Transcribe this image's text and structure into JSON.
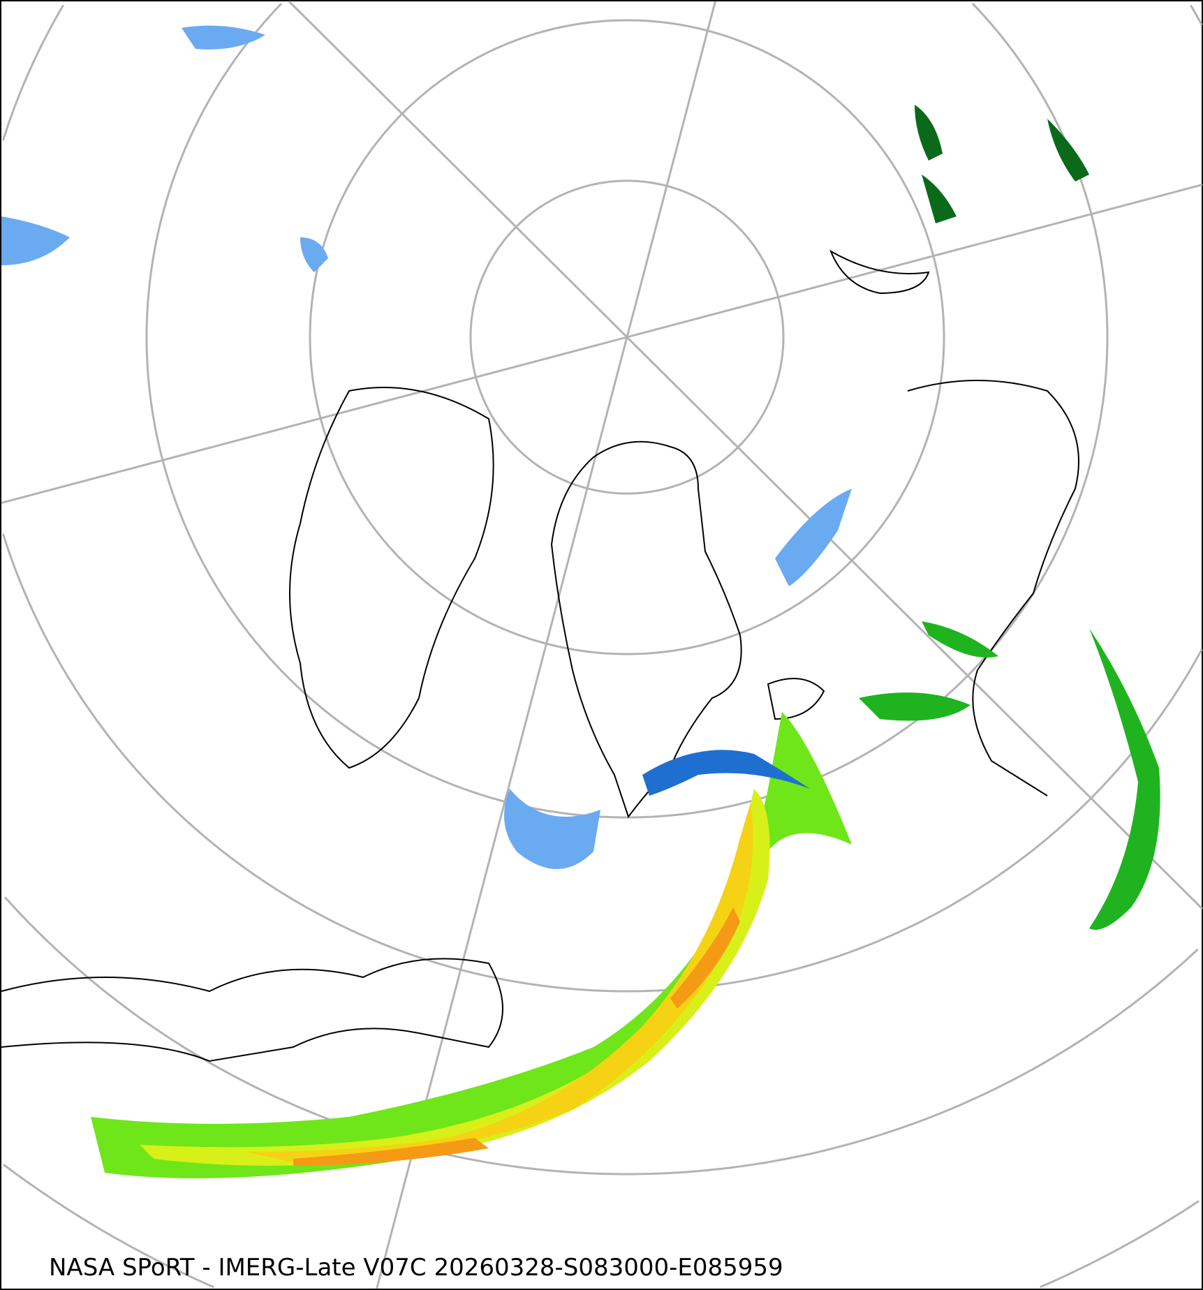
{
  "caption": "NASA SPoRT - IMERG-Late V07C 20260328-S083000-E085959",
  "map": {
    "projection": "north-polar-stereographic",
    "graticule_color": "#b3b3b3",
    "coastline_color": "#000000",
    "precip_colors": [
      "#c6e2ff",
      "#6aaaf0",
      "#1f6fd0",
      "#0a3f9a",
      "#e879c8",
      "#0a6a1a",
      "#1fb41f",
      "#6ee619",
      "#d8f01a",
      "#f5d214",
      "#f59a14",
      "#f0501e"
    ]
  }
}
